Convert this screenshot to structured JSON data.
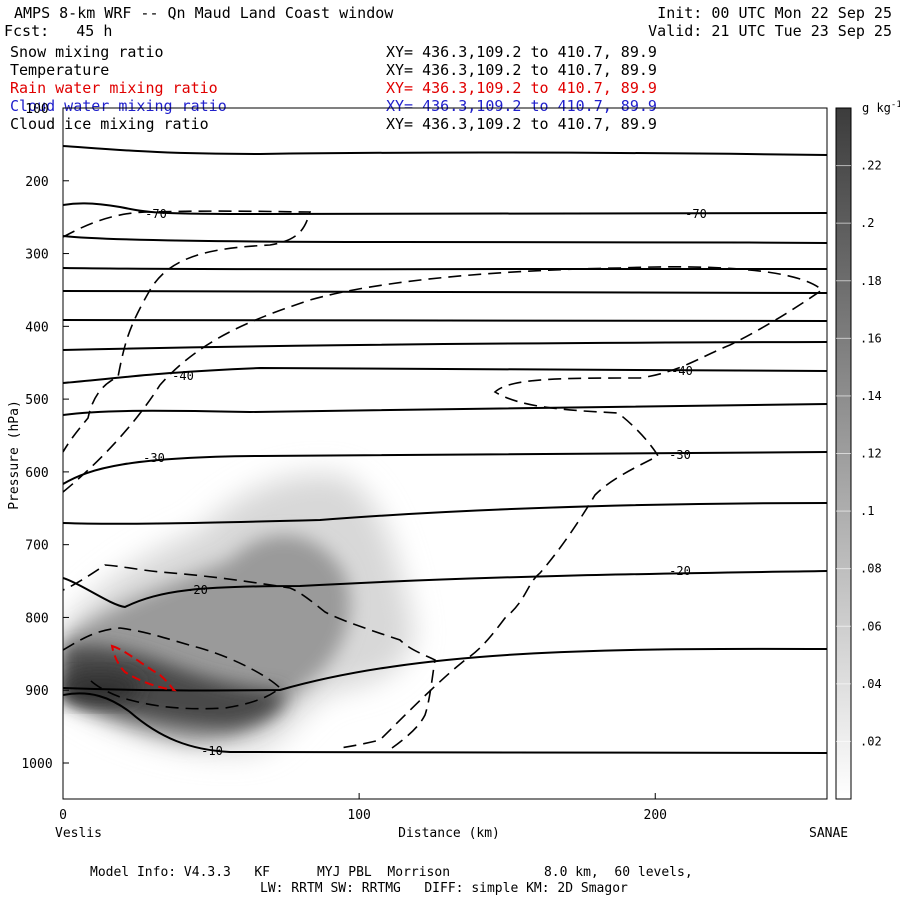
{
  "header": {
    "title": "AMPS 8-km WRF -- Qn Maud Land Coast window",
    "init": "Init: 00 UTC Mon 22 Sep 25",
    "fcst": "Fcst:   45 h",
    "valid": "Valid: 21 UTC Tue 23 Sep 25"
  },
  "fields": [
    {
      "name": "Snow mixing ratio",
      "xy": "XY= 436.3,109.2 to 410.7, 89.9",
      "color": "#000000"
    },
    {
      "name": "Temperature",
      "xy": "XY= 436.3,109.2 to 410.7, 89.9",
      "color": "#000000"
    },
    {
      "name": "Rain water mixing ratio",
      "xy": "XY= 436.3,109.2 to 410.7, 89.9",
      "color": "#e00000"
    },
    {
      "name": "Cloud water mixing ratio",
      "xy": "XY= 436.3,109.2 to 410.7, 89.9",
      "color": "#2020cc"
    },
    {
      "name": "Cloud ice mixing ratio",
      "xy": "XY= 436.3,109.2 to 410.7, 89.9",
      "color": "#000000"
    }
  ],
  "footer": {
    "model_info": "Model Info: V4.3.3   KF      MYJ PBL  Morrison            8.0 km,  60 levels,",
    "physics": "LW: RRTM SW: RRTMG   DIFF: simple KM: 2D Smagor"
  },
  "chart_data": {
    "type": "cross-section",
    "title": "AMPS 8-km WRF -- Qn Maud Land Coast window",
    "xlabel": "Distance (km)",
    "ylabel": "Pressure (hPa)",
    "xlim": [
      0,
      258
    ],
    "ylim": [
      1050,
      100
    ],
    "x_ticks": [
      0,
      100,
      200
    ],
    "x_tick_labels": [
      "0",
      "100",
      "200"
    ],
    "y_ticks": [
      100,
      200,
      300,
      400,
      500,
      600,
      700,
      800,
      900,
      1000
    ],
    "y_tick_labels": [
      "100",
      "200",
      "300",
      "400",
      "500",
      "600",
      "700",
      "800",
      "900",
      "1000"
    ],
    "left_end_label": "Veslis",
    "right_end_label": "SANAE",
    "colorbar": {
      "units": "g kg",
      "units_exp": "-1",
      "ticks": [
        ".02",
        ".04",
        ".06",
        ".08",
        ".1",
        ".12",
        ".14",
        ".16",
        ".18",
        ".2",
        ".22"
      ],
      "min": 0,
      "max": 0.24
    },
    "snow_shading": [
      {
        "x": 90,
        "p": 700,
        "value": 0.09
      },
      {
        "x": 60,
        "p": 780,
        "value": 0.14
      },
      {
        "x": 15,
        "p": 880,
        "value": 0.23
      }
    ],
    "temperature_contours": [
      {
        "label": "-70",
        "label_x": 35,
        "label_p": 247
      },
      {
        "label": "-70",
        "label_x": 213,
        "label_p": 245
      },
      {
        "label": "-40",
        "label_x": 40,
        "label_p": 478
      },
      {
        "label": "-40",
        "label_x": 208,
        "label_p": 466
      },
      {
        "label": "-30",
        "label_x": 30,
        "label_p": 591
      },
      {
        "label": "-30",
        "label_x": 207,
        "label_p": 580
      },
      {
        "label": "-20",
        "label_x": 45,
        "label_p": 784
      },
      {
        "label": "-20",
        "label_x": 207,
        "label_p": 734
      },
      {
        "label": "-10",
        "label_x": 50,
        "label_p": 977
      }
    ]
  }
}
